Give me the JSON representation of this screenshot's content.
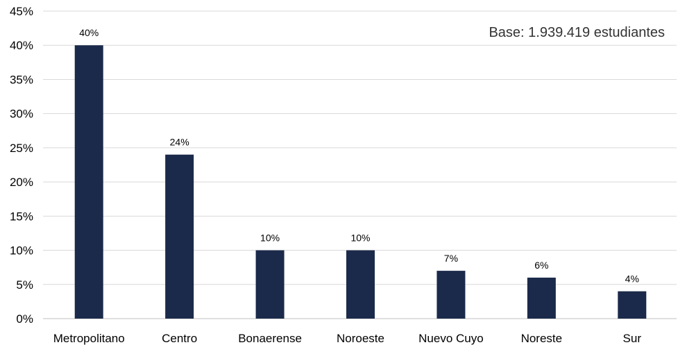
{
  "chart_data": {
    "type": "bar",
    "categories": [
      "Metropolitano",
      "Centro",
      "Bonaerense",
      "Noroeste",
      "Nuevo Cuyo",
      "Noreste",
      "Sur"
    ],
    "values": [
      40,
      24,
      10,
      10,
      7,
      6,
      4
    ],
    "data_labels": [
      "40%",
      "24%",
      "10%",
      "10%",
      "7%",
      "6%",
      "4%"
    ],
    "ylim": [
      0,
      45
    ],
    "yticks": [
      0,
      5,
      10,
      15,
      20,
      25,
      30,
      35,
      40,
      45
    ],
    "ytick_labels": [
      "0%",
      "5%",
      "10%",
      "15%",
      "20%",
      "25%",
      "30%",
      "35%",
      "40%",
      "45%"
    ],
    "grid": true,
    "bar_color": "#1b2a4a",
    "annotation": "Base: 1.939.419 estudiantes"
  }
}
